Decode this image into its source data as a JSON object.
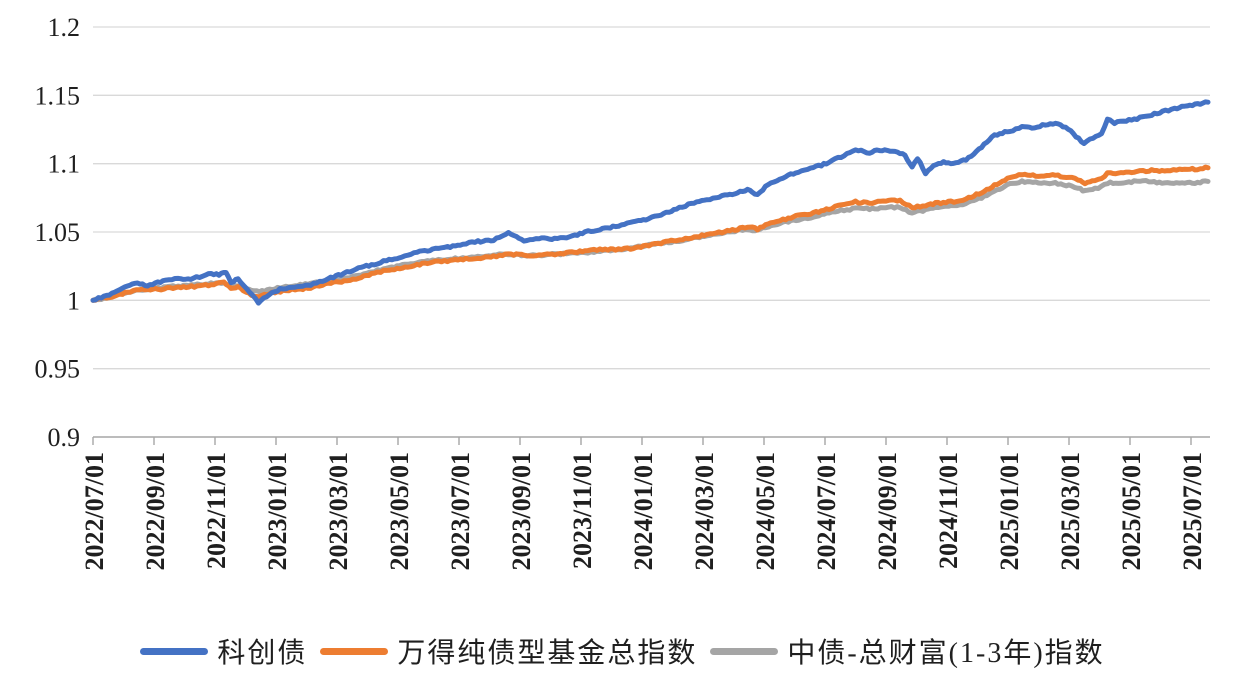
{
  "chart_data": {
    "type": "line",
    "title": "",
    "xlabel": "",
    "ylabel": "",
    "ylim": [
      0.9,
      1.2
    ],
    "yticks": [
      0.9,
      0.95,
      1.0,
      1.05,
      1.1,
      1.15,
      1.2
    ],
    "ytick_labels": [
      "0.9",
      "0.95",
      "1",
      "1.05",
      "1.1",
      "1.15",
      "1.2"
    ],
    "xtick_labels": [
      "2022/07/01",
      "2022/09/01",
      "2022/11/01",
      "2023/01/01",
      "2023/03/01",
      "2023/05/01",
      "2023/07/01",
      "2023/09/01",
      "2023/11/01",
      "2024/01/01",
      "2024/03/01",
      "2024/05/01",
      "2024/07/01",
      "2024/09/01",
      "2024/11/01",
      "2025/01/01",
      "2025/03/01",
      "2025/05/01",
      "2025/07/01"
    ],
    "grid": "horizontal",
    "legend_position": "bottom",
    "colors": {
      "blue": "#4472C4",
      "orange": "#ED7D31",
      "gray": "#A5A5A5",
      "gridline": "#d9d9d9",
      "axis": "#a6a6a6"
    },
    "series": [
      {
        "name": "科创债",
        "color": "#4472C4",
        "points": [
          [
            "2022/07/01",
            1.0
          ],
          [
            "2022/07/20",
            1.005
          ],
          [
            "2022/08/05",
            1.01
          ],
          [
            "2022/08/15",
            1.013
          ],
          [
            "2022/08/25",
            1.011
          ],
          [
            "2022/09/10",
            1.014
          ],
          [
            "2022/09/25",
            1.016
          ],
          [
            "2022/10/10",
            1.016
          ],
          [
            "2022/10/25",
            1.019
          ],
          [
            "2022/11/05",
            1.019
          ],
          [
            "2022/11/12",
            1.021
          ],
          [
            "2022/11/17",
            1.013
          ],
          [
            "2022/11/24",
            1.016
          ],
          [
            "2022/12/05",
            1.006
          ],
          [
            "2022/12/14",
            0.998
          ],
          [
            "2022/12/22",
            1.003
          ],
          [
            "2023/01/05",
            1.008
          ],
          [
            "2023/01/20",
            1.01
          ],
          [
            "2023/02/05",
            1.011
          ],
          [
            "2023/02/20",
            1.015
          ],
          [
            "2023/03/05",
            1.019
          ],
          [
            "2023/03/20",
            1.023
          ],
          [
            "2023/04/05",
            1.026
          ],
          [
            "2023/04/20",
            1.029
          ],
          [
            "2023/05/05",
            1.032
          ],
          [
            "2023/05/20",
            1.035
          ],
          [
            "2023/06/05",
            1.037
          ],
          [
            "2023/06/20",
            1.039
          ],
          [
            "2023/07/05",
            1.041
          ],
          [
            "2023/07/20",
            1.043
          ],
          [
            "2023/08/05",
            1.044
          ],
          [
            "2023/08/20",
            1.05
          ],
          [
            "2023/09/05",
            1.044
          ],
          [
            "2023/09/20",
            1.045
          ],
          [
            "2023/10/05",
            1.045
          ],
          [
            "2023/10/20",
            1.046
          ],
          [
            "2023/11/05",
            1.05
          ],
          [
            "2023/11/20",
            1.052
          ],
          [
            "2023/12/05",
            1.054
          ],
          [
            "2023/12/20",
            1.057
          ],
          [
            "2024/01/05",
            1.059
          ],
          [
            "2024/01/20",
            1.063
          ],
          [
            "2024/02/05",
            1.067
          ],
          [
            "2024/02/20",
            1.071
          ],
          [
            "2024/03/05",
            1.074
          ],
          [
            "2024/03/20",
            1.076
          ],
          [
            "2024/04/05",
            1.079
          ],
          [
            "2024/04/15",
            1.081
          ],
          [
            "2024/04/25",
            1.077
          ],
          [
            "2024/05/05",
            1.085
          ],
          [
            "2024/05/20",
            1.09
          ],
          [
            "2024/06/05",
            1.094
          ],
          [
            "2024/06/20",
            1.097
          ],
          [
            "2024/07/05",
            1.101
          ],
          [
            "2024/07/20",
            1.106
          ],
          [
            "2024/08/01",
            1.11
          ],
          [
            "2024/08/15",
            1.108
          ],
          [
            "2024/08/25",
            1.11
          ],
          [
            "2024/09/10",
            1.109
          ],
          [
            "2024/09/20",
            1.106
          ],
          [
            "2024/09/27",
            1.097
          ],
          [
            "2024/10/02",
            1.104
          ],
          [
            "2024/10/10",
            1.093
          ],
          [
            "2024/10/18",
            1.099
          ],
          [
            "2024/10/28",
            1.101
          ],
          [
            "2024/11/10",
            1.1
          ],
          [
            "2024/11/20",
            1.103
          ],
          [
            "2024/12/05",
            1.112
          ],
          [
            "2024/12/18",
            1.121
          ],
          [
            "2025/01/03",
            1.124
          ],
          [
            "2025/01/15",
            1.127
          ],
          [
            "2025/01/25",
            1.126
          ],
          [
            "2025/02/05",
            1.128
          ],
          [
            "2025/02/18",
            1.129
          ],
          [
            "2025/02/28",
            1.127
          ],
          [
            "2025/03/08",
            1.12
          ],
          [
            "2025/03/16",
            1.115
          ],
          [
            "2025/03/25",
            1.119
          ],
          [
            "2025/04/03",
            1.122
          ],
          [
            "2025/04/09",
            1.132
          ],
          [
            "2025/04/16",
            1.13
          ],
          [
            "2025/04/25",
            1.131
          ],
          [
            "2025/05/08",
            1.133
          ],
          [
            "2025/05/20",
            1.135
          ],
          [
            "2025/06/03",
            1.138
          ],
          [
            "2025/06/15",
            1.14
          ],
          [
            "2025/06/25",
            1.142
          ],
          [
            "2025/07/05",
            1.143
          ],
          [
            "2025/07/18",
            1.145
          ]
        ]
      },
      {
        "name": "万得纯债型基金总指数",
        "color": "#ED7D31",
        "points": [
          [
            "2022/07/01",
            1.0
          ],
          [
            "2022/07/20",
            1.003
          ],
          [
            "2022/08/05",
            1.006
          ],
          [
            "2022/08/20",
            1.008
          ],
          [
            "2022/09/05",
            1.008
          ],
          [
            "2022/09/20",
            1.009
          ],
          [
            "2022/10/08",
            1.01
          ],
          [
            "2022/10/25",
            1.011
          ],
          [
            "2022/11/10",
            1.013
          ],
          [
            "2022/11/17",
            1.009
          ],
          [
            "2022/11/24",
            1.01
          ],
          [
            "2022/12/07",
            1.004
          ],
          [
            "2022/12/15",
            1.003
          ],
          [
            "2022/12/25",
            1.005
          ],
          [
            "2023/01/08",
            1.007
          ],
          [
            "2023/01/20",
            1.008
          ],
          [
            "2023/02/05",
            1.009
          ],
          [
            "2023/02/20",
            1.012
          ],
          [
            "2023/03/08",
            1.014
          ],
          [
            "2023/03/20",
            1.016
          ],
          [
            "2023/04/05",
            1.019
          ],
          [
            "2023/04/20",
            1.022
          ],
          [
            "2023/05/08",
            1.024
          ],
          [
            "2023/05/20",
            1.026
          ],
          [
            "2023/06/05",
            1.028
          ],
          [
            "2023/06/20",
            1.029
          ],
          [
            "2023/07/05",
            1.03
          ],
          [
            "2023/07/20",
            1.031
          ],
          [
            "2023/08/05",
            1.032
          ],
          [
            "2023/08/20",
            1.034
          ],
          [
            "2023/09/05",
            1.033
          ],
          [
            "2023/09/20",
            1.033
          ],
          [
            "2023/10/08",
            1.034
          ],
          [
            "2023/10/20",
            1.035
          ],
          [
            "2023/11/05",
            1.036
          ],
          [
            "2023/11/20",
            1.037
          ],
          [
            "2023/12/05",
            1.037
          ],
          [
            "2023/12/20",
            1.038
          ],
          [
            "2024/01/05",
            1.04
          ],
          [
            "2024/01/20",
            1.042
          ],
          [
            "2024/02/05",
            1.044
          ],
          [
            "2024/02/20",
            1.046
          ],
          [
            "2024/03/05",
            1.048
          ],
          [
            "2024/03/20",
            1.05
          ],
          [
            "2024/04/05",
            1.052
          ],
          [
            "2024/04/15",
            1.054
          ],
          [
            "2024/04/25",
            1.052
          ],
          [
            "2024/05/08",
            1.057
          ],
          [
            "2024/05/20",
            1.059
          ],
          [
            "2024/06/05",
            1.062
          ],
          [
            "2024/06/20",
            1.064
          ],
          [
            "2024/07/05",
            1.067
          ],
          [
            "2024/07/20",
            1.07
          ],
          [
            "2024/08/01",
            1.072
          ],
          [
            "2024/08/15",
            1.071
          ],
          [
            "2024/09/01",
            1.073
          ],
          [
            "2024/09/15",
            1.073
          ],
          [
            "2024/09/27",
            1.068
          ],
          [
            "2024/10/10",
            1.069
          ],
          [
            "2024/10/20",
            1.071
          ],
          [
            "2024/11/05",
            1.072
          ],
          [
            "2024/11/20",
            1.074
          ],
          [
            "2024/12/05",
            1.079
          ],
          [
            "2024/12/18",
            1.084
          ],
          [
            "2025/01/03",
            1.09
          ],
          [
            "2025/01/15",
            1.092
          ],
          [
            "2025/02/01",
            1.091
          ],
          [
            "2025/02/15",
            1.092
          ],
          [
            "2025/03/01",
            1.09
          ],
          [
            "2025/03/10",
            1.088
          ],
          [
            "2025/03/17",
            1.086
          ],
          [
            "2025/03/27",
            1.088
          ],
          [
            "2025/04/03",
            1.089
          ],
          [
            "2025/04/09",
            1.093
          ],
          [
            "2025/04/20",
            1.093
          ],
          [
            "2025/05/05",
            1.094
          ],
          [
            "2025/05/20",
            1.095
          ],
          [
            "2025/06/05",
            1.095
          ],
          [
            "2025/06/20",
            1.096
          ],
          [
            "2025/07/05",
            1.096
          ],
          [
            "2025/07/18",
            1.097
          ]
        ]
      },
      {
        "name": "中债-总财富(1-3年)指数",
        "color": "#A5A5A5",
        "points": [
          [
            "2022/07/01",
            1.0
          ],
          [
            "2022/07/20",
            1.003
          ],
          [
            "2022/08/05",
            1.006
          ],
          [
            "2022/08/20",
            1.008
          ],
          [
            "2022/09/05",
            1.009
          ],
          [
            "2022/09/20",
            1.01
          ],
          [
            "2022/10/08",
            1.011
          ],
          [
            "2022/10/25",
            1.012
          ],
          [
            "2022/11/10",
            1.013
          ],
          [
            "2022/11/17",
            1.01
          ],
          [
            "2022/11/24",
            1.011
          ],
          [
            "2022/12/07",
            1.007
          ],
          [
            "2022/12/15",
            1.006
          ],
          [
            "2022/12/25",
            1.008
          ],
          [
            "2023/01/08",
            1.01
          ],
          [
            "2023/01/20",
            1.011
          ],
          [
            "2023/02/05",
            1.012
          ],
          [
            "2023/02/20",
            1.014
          ],
          [
            "2023/03/08",
            1.016
          ],
          [
            "2023/03/20",
            1.018
          ],
          [
            "2023/04/05",
            1.021
          ],
          [
            "2023/04/20",
            1.023
          ],
          [
            "2023/05/08",
            1.026
          ],
          [
            "2023/05/20",
            1.028
          ],
          [
            "2023/06/05",
            1.029
          ],
          [
            "2023/06/20",
            1.03
          ],
          [
            "2023/07/05",
            1.031
          ],
          [
            "2023/07/20",
            1.032
          ],
          [
            "2023/08/05",
            1.033
          ],
          [
            "2023/08/20",
            1.034
          ],
          [
            "2023/09/05",
            1.033
          ],
          [
            "2023/09/20",
            1.033
          ],
          [
            "2023/10/08",
            1.034
          ],
          [
            "2023/10/20",
            1.034
          ],
          [
            "2023/11/05",
            1.035
          ],
          [
            "2023/11/20",
            1.036
          ],
          [
            "2023/12/05",
            1.037
          ],
          [
            "2023/12/20",
            1.038
          ],
          [
            "2024/01/05",
            1.04
          ],
          [
            "2024/01/20",
            1.042
          ],
          [
            "2024/02/05",
            1.043
          ],
          [
            "2024/02/20",
            1.045
          ],
          [
            "2024/03/05",
            1.047
          ],
          [
            "2024/03/20",
            1.049
          ],
          [
            "2024/04/05",
            1.051
          ],
          [
            "2024/04/15",
            1.052
          ],
          [
            "2024/04/25",
            1.051
          ],
          [
            "2024/05/08",
            1.055
          ],
          [
            "2024/05/20",
            1.057
          ],
          [
            "2024/06/05",
            1.059
          ],
          [
            "2024/06/20",
            1.061
          ],
          [
            "2024/07/05",
            1.064
          ],
          [
            "2024/07/20",
            1.066
          ],
          [
            "2024/08/01",
            1.067
          ],
          [
            "2024/08/15",
            1.067
          ],
          [
            "2024/09/01",
            1.068
          ],
          [
            "2024/09/15",
            1.068
          ],
          [
            "2024/09/27",
            1.064
          ],
          [
            "2024/10/10",
            1.066
          ],
          [
            "2024/10/20",
            1.068
          ],
          [
            "2024/11/05",
            1.069
          ],
          [
            "2024/11/20",
            1.071
          ],
          [
            "2024/12/05",
            1.075
          ],
          [
            "2024/12/18",
            1.08
          ],
          [
            "2025/01/03",
            1.085
          ],
          [
            "2025/01/15",
            1.087
          ],
          [
            "2025/02/01",
            1.086
          ],
          [
            "2025/02/15",
            1.086
          ],
          [
            "2025/03/01",
            1.084
          ],
          [
            "2025/03/10",
            1.082
          ],
          [
            "2025/03/17",
            1.08
          ],
          [
            "2025/03/27",
            1.082
          ],
          [
            "2025/04/03",
            1.083
          ],
          [
            "2025/04/09",
            1.086
          ],
          [
            "2025/04/20",
            1.086
          ],
          [
            "2025/05/05",
            1.087
          ],
          [
            "2025/05/20",
            1.087
          ],
          [
            "2025/06/05",
            1.086
          ],
          [
            "2025/06/20",
            1.086
          ],
          [
            "2025/07/05",
            1.086
          ],
          [
            "2025/07/18",
            1.087
          ]
        ]
      }
    ],
    "legend_entries": [
      "科创债",
      "万得纯债型基金总指数",
      "中债-总财富(1-3年)指数"
    ]
  }
}
